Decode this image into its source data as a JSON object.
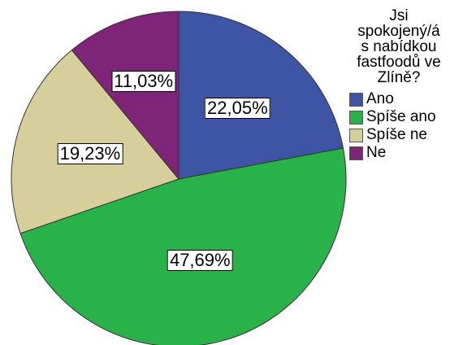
{
  "chart_data": {
    "type": "pie",
    "title": "",
    "legend_title": "Jsi spokojený/á s nabídkou fastfoodů ve Zlíně?",
    "legend_title_lines": [
      "Jsi",
      "spokojený/á",
      "s nabídkou",
      "fastfoodů ve",
      "Zlíně?"
    ],
    "legend_position": "top-right",
    "slices": [
      {
        "label": "Ano",
        "value": 22.05,
        "value_label": "22,05%",
        "color": "#3e55a6"
      },
      {
        "label": "Spíše ano",
        "value": 47.69,
        "value_label": "47,69%",
        "color": "#2ab24a"
      },
      {
        "label": "Spíše ne",
        "value": 19.23,
        "value_label": "19,23%",
        "color": "#d6cf9c"
      },
      {
        "label": "Ne",
        "value": 11.03,
        "value_label": "11,03%",
        "color": "#7e257a"
      }
    ]
  }
}
